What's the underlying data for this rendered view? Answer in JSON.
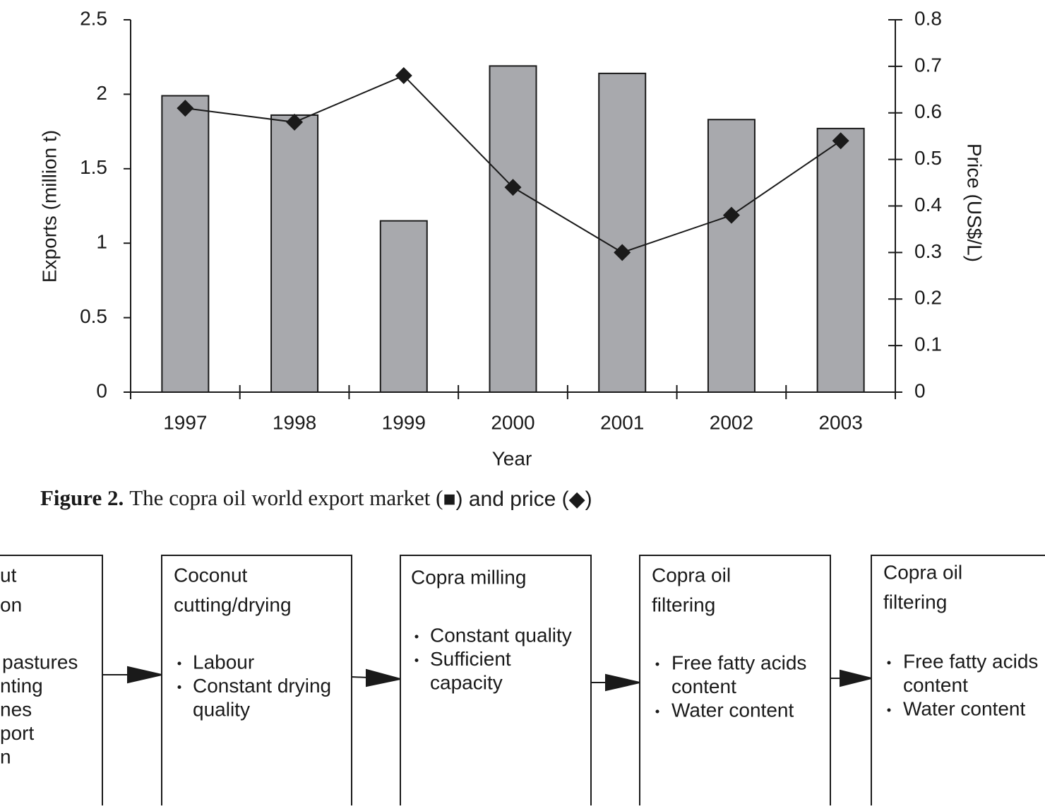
{
  "chart_data": {
    "type": "bar",
    "categories": [
      "1997",
      "1998",
      "1999",
      "2000",
      "2001",
      "2002",
      "2003"
    ],
    "series": [
      {
        "type": "bar",
        "color": "#a8a9ad",
        "values": [
          1.99,
          1.86,
          1.15,
          2.19,
          2.14,
          1.83,
          1.77
        ]
      },
      {
        "type": "line",
        "axis": "y2",
        "color": "#1a1a1a",
        "values": [
          0.61,
          0.58,
          0.68,
          0.44,
          0.3,
          0.38,
          0.54
        ]
      }
    ],
    "ylim": [
      0,
      2.5
    ],
    "yticks": [
      0,
      0.5,
      1,
      1.5,
      2,
      2.5
    ],
    "y2lim": [
      0,
      0.8
    ],
    "y2ticks": [
      0,
      0.1,
      0.2,
      0.3,
      0.4,
      0.5,
      0.6,
      0.7,
      0.8
    ],
    "x_label": "Year",
    "y_label": "Exports (million t)",
    "y2_label": "Price (US$/L)"
  },
  "caption": {
    "label": "Figure 2.",
    "text": "The copra oil world export market (",
    "symbols": "■) and price (◆)"
  },
  "diagram": {
    "boxes": [
      {
        "title": [
          "ut",
          "on"
        ],
        "items": [
          [
            "pastures"
          ],
          [
            "nting"
          ],
          [
            "nes"
          ],
          [
            "port"
          ],
          [
            "n"
          ]
        ]
      },
      {
        "title": [
          "Coconut",
          "cutting/drying"
        ],
        "items": [
          [
            "Labour"
          ],
          [
            "Constant drying",
            "quality"
          ]
        ]
      },
      {
        "title": [
          "Copra milling"
        ],
        "items": [
          [
            "Constant quality"
          ],
          [
            "Sufficient",
            "capacity"
          ]
        ]
      },
      {
        "title": [
          "Copra oil",
          "filtering"
        ],
        "items": [
          [
            "Free fatty acids",
            "content"
          ],
          [
            "Water content"
          ]
        ]
      },
      {
        "title": [
          "Copra oil",
          "filtering"
        ],
        "items": [
          [
            "Free fatty acids",
            "content"
          ],
          [
            "Water content"
          ]
        ]
      }
    ]
  }
}
